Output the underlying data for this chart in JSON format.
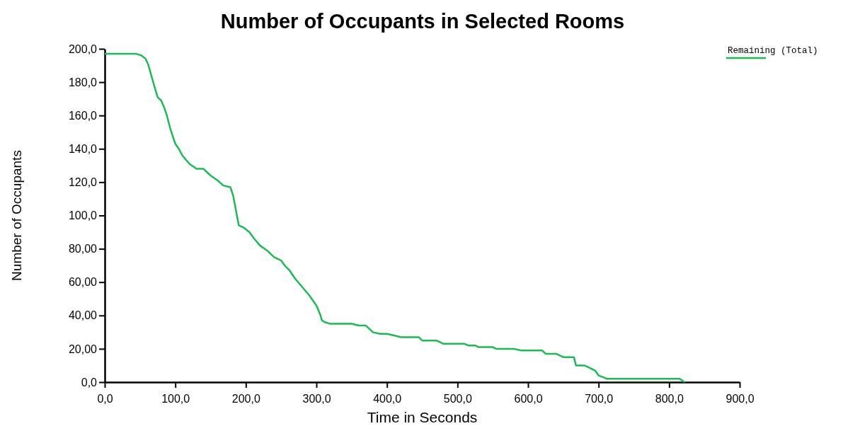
{
  "chart_data": {
    "type": "line",
    "title": "Number of Occupants in Selected Rooms",
    "xlabel": "Time in Seconds",
    "ylabel": "Number of Occupants",
    "xlim": [
      0,
      900
    ],
    "ylim": [
      0,
      200
    ],
    "xticks": [
      {
        "value": 0,
        "label": "0,0"
      },
      {
        "value": 100,
        "label": "100,0"
      },
      {
        "value": 200,
        "label": "200,0"
      },
      {
        "value": 300,
        "label": "300,0"
      },
      {
        "value": 400,
        "label": "400,0"
      },
      {
        "value": 500,
        "label": "500,0"
      },
      {
        "value": 600,
        "label": "600,0"
      },
      {
        "value": 700,
        "label": "700,0"
      },
      {
        "value": 800,
        "label": "800,0"
      },
      {
        "value": 900,
        "label": "900,0"
      }
    ],
    "yticks": [
      {
        "value": 0,
        "label": "0,0"
      },
      {
        "value": 20,
        "label": "20,00"
      },
      {
        "value": 40,
        "label": "40,00"
      },
      {
        "value": 60,
        "label": "60,00"
      },
      {
        "value": 80,
        "label": "80,00"
      },
      {
        "value": 100,
        "label": "100,0"
      },
      {
        "value": 120,
        "label": "120,0"
      },
      {
        "value": 140,
        "label": "140,0"
      },
      {
        "value": 160,
        "label": "160,0"
      },
      {
        "value": 180,
        "label": "180,0"
      },
      {
        "value": 200,
        "label": "200,0"
      }
    ],
    "grid": false,
    "legend": "top right",
    "series": [
      {
        "name": "Remaining (Total)",
        "color": "#1db954",
        "x": [
          0,
          45,
          52,
          58,
          62,
          66,
          70,
          75,
          80,
          84,
          88,
          93,
          100,
          105,
          110,
          120,
          130,
          140,
          150,
          160,
          168,
          178,
          182,
          186,
          190,
          196,
          205,
          212,
          220,
          230,
          240,
          250,
          255,
          262,
          270,
          280,
          290,
          300,
          305,
          308,
          312,
          320,
          350,
          360,
          370,
          375,
          380,
          390,
          400,
          410,
          420,
          445,
          450,
          470,
          475,
          480,
          510,
          515,
          525,
          530,
          550,
          555,
          580,
          590,
          620,
          625,
          640,
          645,
          650,
          665,
          668,
          680,
          690,
          695,
          700,
          706,
          712,
          720,
          815,
          822
        ],
        "values": [
          197,
          197,
          196,
          194,
          190,
          184,
          178,
          171,
          169,
          165,
          160,
          152,
          143,
          140,
          136,
          131,
          128,
          128,
          124,
          121,
          118,
          117,
          112,
          103,
          94,
          93,
          90,
          86,
          82,
          79,
          75,
          73,
          70,
          67,
          62,
          57,
          52,
          46,
          41,
          37,
          36,
          35,
          35,
          34,
          34,
          32,
          30,
          29,
          29,
          28,
          27,
          27,
          25,
          25,
          24,
          23,
          23,
          22,
          22,
          21,
          21,
          20,
          20,
          19,
          19,
          17,
          17,
          16,
          15,
          15,
          10,
          10,
          8,
          7,
          4,
          3,
          2,
          2,
          2,
          0
        ]
      }
    ]
  }
}
